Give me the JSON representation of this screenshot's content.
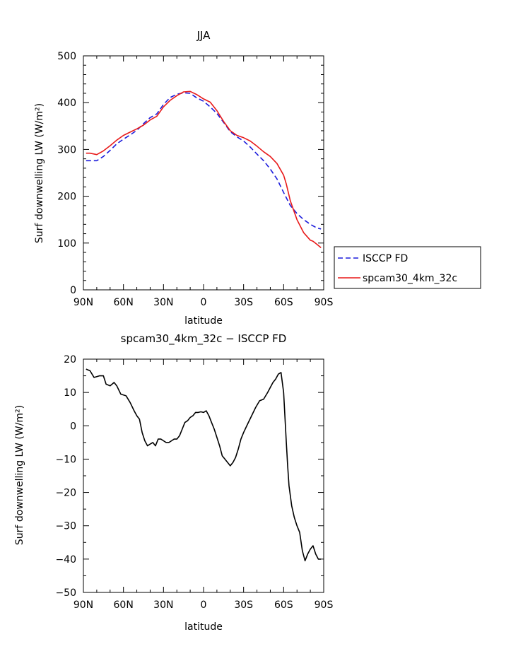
{
  "chart_data": [
    {
      "type": "line",
      "title": "JJA",
      "xlabel": "latitude",
      "ylabel": "Surf downwelling LW (W/m²)",
      "xlim": [
        90,
        -90
      ],
      "ylim": [
        0,
        500
      ],
      "x_ticks": [
        90,
        60,
        30,
        0,
        -30,
        -60,
        -90
      ],
      "x_tick_labels": [
        "90N",
        "60N",
        "30N",
        "0",
        "30S",
        "60S",
        "90S"
      ],
      "y_ticks": [
        0,
        100,
        200,
        300,
        400,
        500
      ],
      "y_tick_labels": [
        "0",
        "100",
        "200",
        "300",
        "400",
        "500"
      ],
      "grid": false,
      "legend_position": "outside-right",
      "series": [
        {
          "name": "ISCCP FD",
          "color": "#1a1adb",
          "dash": "dashed",
          "x": [
            88,
            80,
            75,
            70,
            65,
            60,
            55,
            50,
            45,
            40,
            35,
            30,
            25,
            20,
            15,
            10,
            5,
            0,
            -5,
            -10,
            -15,
            -20,
            -25,
            -30,
            -35,
            -40,
            -45,
            -50,
            -55,
            -60,
            -65,
            -70,
            -75,
            -80,
            -85,
            -88
          ],
          "y": [
            276,
            276,
            285,
            298,
            312,
            322,
            331,
            341,
            355,
            368,
            376,
            396,
            411,
            418,
            421,
            420,
            410,
            403,
            391,
            377,
            358,
            338,
            327,
            318,
            305,
            290,
            276,
            258,
            237,
            208,
            180,
            163,
            150,
            140,
            132,
            130
          ]
        },
        {
          "name": "spcam30_4km_32c",
          "color": "#e81a1a",
          "dash": "solid",
          "x": [
            88,
            85,
            80,
            75,
            70,
            65,
            60,
            55,
            50,
            45,
            40,
            35,
            30,
            25,
            20,
            15,
            10,
            5,
            0,
            -5,
            -10,
            -15,
            -20,
            -25,
            -30,
            -35,
            -40,
            -45,
            -50,
            -55,
            -60,
            -62,
            -65,
            -70,
            -75,
            -80,
            -82,
            -85,
            -88
          ],
          "y": [
            292,
            292,
            289,
            297,
            308,
            320,
            330,
            337,
            344,
            352,
            363,
            371,
            391,
            405,
            415,
            423,
            424,
            417,
            408,
            401,
            383,
            360,
            340,
            330,
            325,
            318,
            307,
            295,
            285,
            270,
            245,
            226,
            190,
            150,
            122,
            106,
            104,
            97,
            90
          ]
        }
      ]
    },
    {
      "type": "line",
      "title": "spcam30_4km_32c − ISCCP FD",
      "xlabel": "latitude",
      "ylabel": "Surf downwelling LW (W/m²)",
      "xlim": [
        90,
        -90
      ],
      "ylim": [
        -50,
        20
      ],
      "x_ticks": [
        90,
        60,
        30,
        0,
        -30,
        -60,
        -90
      ],
      "x_tick_labels": [
        "90N",
        "60N",
        "30N",
        "0",
        "30S",
        "60S",
        "90S"
      ],
      "y_ticks": [
        -50,
        -40,
        -30,
        -20,
        -10,
        0,
        10,
        20
      ],
      "y_tick_labels": [
        "−50",
        "−40",
        "−30",
        "−20",
        "−10",
        "0",
        "10",
        "20"
      ],
      "grid": false,
      "series": [
        {
          "color": "#000000",
          "dash": "solid",
          "x": [
            88,
            85,
            82,
            78,
            75,
            73,
            70,
            67,
            65,
            62,
            58,
            55,
            52,
            50,
            48,
            46,
            44,
            42,
            40,
            38,
            36,
            34,
            32,
            30,
            28,
            26,
            24,
            22,
            20,
            18,
            16,
            14,
            12,
            10,
            8,
            6,
            4,
            2,
            0,
            -2,
            -4,
            -6,
            -8,
            -10,
            -12,
            -14,
            -16,
            -18,
            -20,
            -22,
            -24,
            -26,
            -28,
            -30,
            -33,
            -36,
            -39,
            -42,
            -45,
            -48,
            -50,
            -52,
            -54,
            -56,
            -58,
            -60,
            -62,
            -63,
            -64,
            -66,
            -68,
            -70,
            -72,
            -74,
            -76,
            -78,
            -80,
            -82,
            -84,
            -86,
            -88
          ],
          "y": [
            17,
            16.5,
            14.5,
            15,
            15,
            12.5,
            12,
            13,
            12,
            9.5,
            9,
            7,
            4.5,
            3,
            2,
            -2,
            -4.5,
            -6,
            -5.5,
            -5,
            -6,
            -4,
            -4,
            -4.5,
            -5,
            -5,
            -4.5,
            -4,
            -4,
            -3,
            -1,
            1,
            1.5,
            2.5,
            3,
            4,
            4,
            4.2,
            4,
            4.5,
            3,
            1,
            -1,
            -3.5,
            -6,
            -9,
            -10,
            -11,
            -12,
            -11,
            -9.5,
            -7,
            -4,
            -2,
            0.5,
            3,
            5.5,
            7.5,
            8,
            10,
            11.5,
            13,
            14,
            15.5,
            16,
            10,
            -5,
            -12,
            -18,
            -24,
            -27.5,
            -30,
            -32,
            -37.5,
            -40.5,
            -38.5,
            -37,
            -36,
            -38.5,
            -40,
            -40
          ]
        }
      ]
    }
  ]
}
